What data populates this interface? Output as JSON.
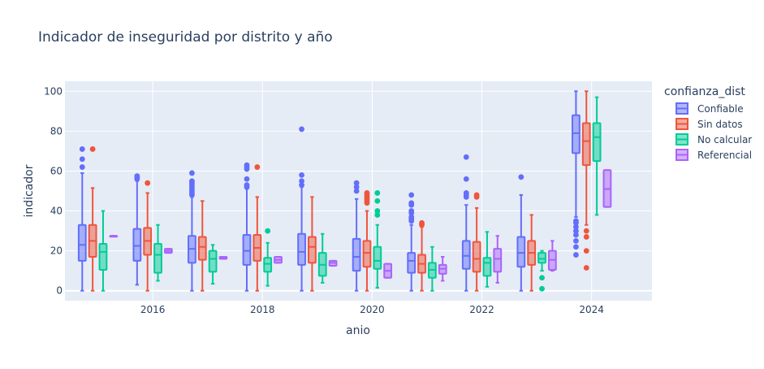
{
  "chart_data": {
    "type": "box",
    "title": "Indicador de inseguridad por distrito y año",
    "xlabel": "anio",
    "ylabel": "indicador",
    "ylim": [
      -5,
      105
    ],
    "xlim": [
      2014.4,
      2025.1
    ],
    "x_ticks": [
      2016,
      2018,
      2020,
      2022,
      2024
    ],
    "y_ticks": [
      0,
      20,
      40,
      60,
      80,
      100
    ],
    "legend_title": "confianza_dist",
    "legend_position": "right",
    "grid": true,
    "plot_bg": "#e5ecf6",
    "series": [
      {
        "name": "Confiable",
        "color": "#636efa",
        "fill": "rgba(99,110,250,0.5)",
        "boxes": [
          {
            "x": 2015,
            "min": 0,
            "q1": 15,
            "median": 23,
            "q3": 33,
            "max": 59,
            "outliers": [
              62,
              66,
              71
            ]
          },
          {
            "x": 2016,
            "min": 3,
            "q1": 15,
            "median": 22.5,
            "q3": 31,
            "max": 55,
            "outliers": [
              56,
              57,
              57.5
            ]
          },
          {
            "x": 2017,
            "min": 0,
            "q1": 14,
            "median": 21,
            "q3": 27.5,
            "max": 47,
            "outliers": [
              48,
              49,
              50,
              51,
              52,
              53,
              54,
              55,
              59
            ]
          },
          {
            "x": 2018,
            "min": 0,
            "q1": 13,
            "median": 20,
            "q3": 28,
            "max": 51,
            "outliers": [
              52,
              53,
              56,
              61,
              62,
              63
            ]
          },
          {
            "x": 2019,
            "min": 0,
            "q1": 13,
            "median": 19.5,
            "q3": 28.5,
            "max": 52,
            "outliers": [
              53,
              55,
              58,
              81
            ]
          },
          {
            "x": 2020,
            "min": 0,
            "q1": 10,
            "median": 17,
            "q3": 26,
            "max": 46,
            "outliers": [
              50,
              52,
              54
            ]
          },
          {
            "x": 2021,
            "min": 0,
            "q1": 9,
            "median": 15,
            "q3": 19,
            "max": 33,
            "outliers": [
              35,
              36,
              37,
              39,
              40,
              43,
              44,
              48
            ]
          },
          {
            "x": 2022,
            "min": 0,
            "q1": 11,
            "median": 17.5,
            "q3": 25,
            "max": 43,
            "outliers": [
              47,
              48,
              49,
              56,
              67
            ]
          },
          {
            "x": 2023,
            "min": 0,
            "q1": 12,
            "median": 19,
            "q3": 27,
            "max": 48,
            "outliers": [
              57
            ]
          },
          {
            "x": 2024,
            "min": 37,
            "q1": 69,
            "median": 79,
            "q3": 88,
            "max": 100,
            "outliers": [
              18,
              22,
              25,
              28,
              30,
              32,
              34,
              35
            ]
          }
        ]
      },
      {
        "name": "Sin datos",
        "color": "#ef553b",
        "fill": "rgba(239,85,59,0.5)",
        "boxes": [
          {
            "x": 2015,
            "min": 0,
            "q1": 17,
            "median": 25,
            "q3": 33,
            "max": 51.5,
            "outliers": [
              71
            ]
          },
          {
            "x": 2016,
            "min": 0,
            "q1": 18,
            "median": 25,
            "q3": 31.5,
            "max": 49,
            "outliers": [
              54
            ]
          },
          {
            "x": 2017,
            "min": 0,
            "q1": 15.5,
            "median": 22,
            "q3": 27,
            "max": 45,
            "outliers": []
          },
          {
            "x": 2018,
            "min": 0,
            "q1": 15,
            "median": 21.5,
            "q3": 28,
            "max": 47,
            "outliers": [
              62
            ]
          },
          {
            "x": 2019,
            "min": 0,
            "q1": 14,
            "median": 22,
            "q3": 27,
            "max": 47,
            "outliers": []
          },
          {
            "x": 2020,
            "min": 0,
            "q1": 12,
            "median": 19,
            "q3": 25,
            "max": 40,
            "outliers": [
              44,
              45,
              46,
              47,
              48,
              49
            ]
          },
          {
            "x": 2021,
            "min": 0,
            "q1": 9,
            "median": 13.5,
            "q3": 18,
            "max": 32,
            "outliers": [
              33,
              34
            ]
          },
          {
            "x": 2022,
            "min": 0,
            "q1": 9.5,
            "median": 16,
            "q3": 24.5,
            "max": 41.5,
            "outliers": [
              47,
              48
            ]
          },
          {
            "x": 2023,
            "min": 0,
            "q1": 13,
            "median": 19,
            "q3": 25,
            "max": 38,
            "outliers": []
          },
          {
            "x": 2024,
            "min": 33,
            "q1": 63,
            "median": 75,
            "q3": 84,
            "max": 100,
            "outliers": [
              11.5,
              20,
              27,
              30
            ]
          }
        ]
      },
      {
        "name": "No calcular",
        "color": "#00cc96",
        "fill": "rgba(0,204,150,0.5)",
        "boxes": [
          {
            "x": 2015,
            "min": 0,
            "q1": 10.5,
            "median": 19.5,
            "q3": 23.5,
            "max": 40,
            "outliers": []
          },
          {
            "x": 2016,
            "min": 5,
            "q1": 9,
            "median": 18,
            "q3": 23.5,
            "max": 33,
            "outliers": []
          },
          {
            "x": 2017,
            "min": 3.5,
            "q1": 9.5,
            "median": 16,
            "q3": 20,
            "max": 23,
            "outliers": []
          },
          {
            "x": 2018,
            "min": 2.5,
            "q1": 9.5,
            "median": 13.5,
            "q3": 16.5,
            "max": 24,
            "outliers": [
              30
            ]
          },
          {
            "x": 2019,
            "min": 4,
            "q1": 7.5,
            "median": 13,
            "q3": 19,
            "max": 28.5,
            "outliers": []
          },
          {
            "x": 2020,
            "min": 1.5,
            "q1": 11,
            "median": 15,
            "q3": 22,
            "max": 33,
            "outliers": [
              38,
              40,
              45,
              49
            ]
          },
          {
            "x": 2021,
            "min": 0,
            "q1": 6.5,
            "median": 10.5,
            "q3": 14,
            "max": 22,
            "outliers": []
          },
          {
            "x": 2022,
            "min": 2,
            "q1": 7.5,
            "median": 14,
            "q3": 16.5,
            "max": 29.5,
            "outliers": []
          },
          {
            "x": 2023,
            "min": 10,
            "q1": 14,
            "median": 16,
            "q3": 19,
            "max": 20,
            "outliers": [
              1,
              6.5
            ]
          },
          {
            "x": 2024,
            "min": 38,
            "q1": 65,
            "median": 77,
            "q3": 84,
            "max": 97,
            "outliers": []
          }
        ]
      },
      {
        "name": "Referencial",
        "color": "#ab63fa",
        "fill": "rgba(171,99,250,0.5)",
        "boxes": [
          {
            "x": 2015,
            "min": 27.5,
            "q1": 27.5,
            "median": 27.5,
            "q3": 27.5,
            "max": 27.5,
            "outliers": []
          },
          {
            "x": 2016,
            "min": 19,
            "q1": 19,
            "median": 20,
            "q3": 21,
            "max": 21,
            "outliers": []
          },
          {
            "x": 2017,
            "min": 16,
            "q1": 16,
            "median": 16.5,
            "q3": 17,
            "max": 17,
            "outliers": []
          },
          {
            "x": 2018,
            "min": 14,
            "q1": 14,
            "median": 15.5,
            "q3": 17,
            "max": 17,
            "outliers": []
          },
          {
            "x": 2019,
            "min": 12.5,
            "q1": 12.5,
            "median": 14,
            "q3": 15,
            "max": 15,
            "outliers": []
          },
          {
            "x": 2020,
            "min": 6.5,
            "q1": 6.5,
            "median": 10,
            "q3": 13.5,
            "max": 13.5,
            "outliers": []
          },
          {
            "x": 2021,
            "min": 5,
            "q1": 8.5,
            "median": 11,
            "q3": 13,
            "max": 17,
            "outliers": []
          },
          {
            "x": 2022,
            "min": 4,
            "q1": 9.5,
            "median": 16,
            "q3": 21,
            "max": 27.5,
            "outliers": []
          },
          {
            "x": 2023,
            "min": 10,
            "q1": 10.5,
            "median": 15.5,
            "q3": 20,
            "max": 25,
            "outliers": []
          },
          {
            "x": 2024,
            "min": 42,
            "q1": 42,
            "median": 51,
            "q3": 60.5,
            "max": 60.5,
            "outliers": []
          }
        ]
      }
    ]
  }
}
